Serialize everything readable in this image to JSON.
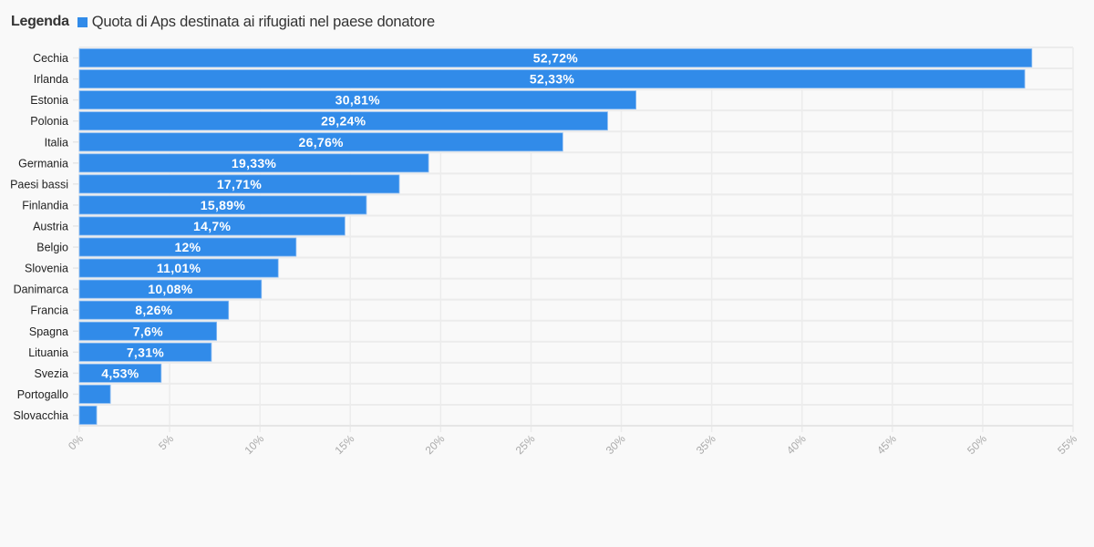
{
  "legend": {
    "title": "Legenda",
    "series_label": "Quota di Aps destinata ai rifugiati nel paese donatore",
    "color": "#318be9"
  },
  "chart_data": {
    "type": "bar",
    "orientation": "horizontal",
    "title": "",
    "xlabel": "",
    "ylabel": "",
    "xlim": [
      0,
      55
    ],
    "grid": true,
    "legend_position": "top-left",
    "categories": [
      "Cechia",
      "Irlanda",
      "Estonia",
      "Polonia",
      "Italia",
      "Germania",
      "Paesi bassi",
      "Finlandia",
      "Austria",
      "Belgio",
      "Slovenia",
      "Danimarca",
      "Francia",
      "Spagna",
      "Lituania",
      "Svezia",
      "Portogallo",
      "Slovacchia"
    ],
    "series": [
      {
        "name": "Quota di Aps destinata ai rifugiati nel paese donatore",
        "color": "#318be9",
        "values": [
          52.72,
          52.33,
          30.81,
          29.24,
          26.76,
          19.33,
          17.71,
          15.89,
          14.7,
          12,
          11.01,
          10.08,
          8.26,
          7.6,
          7.31,
          4.53,
          1.72,
          0.96
        ],
        "data_labels": [
          "52,72%",
          "52,33%",
          "30,81%",
          "29,24%",
          "26,76%",
          "19,33%",
          "17,71%",
          "15,89%",
          "14,7%",
          "12%",
          "11,01%",
          "10,08%",
          "8,26%",
          "7,6%",
          "7,31%",
          "4,53%",
          "",
          ""
        ]
      }
    ],
    "x_ticks": [
      0,
      5,
      10,
      15,
      20,
      25,
      30,
      35,
      40,
      45,
      50,
      55
    ],
    "x_tick_labels": [
      "0%",
      "5%",
      "10%",
      "15%",
      "20%",
      "25%",
      "30%",
      "35%",
      "40%",
      "45%",
      "50%",
      "55%"
    ]
  }
}
